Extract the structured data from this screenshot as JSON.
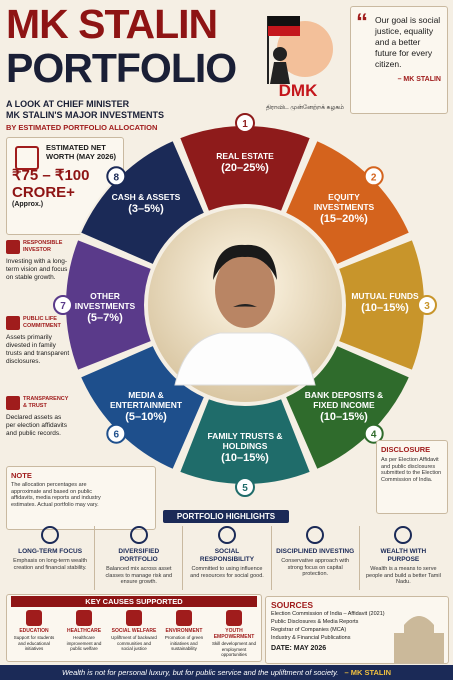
{
  "header": {
    "title_line1": "MK STALIN",
    "title_line2": "PORTFOLIO",
    "subtitle_line1": "A LOOK AT CHIEF MINISTER",
    "subtitle_line2": "MK STALIN'S MAJOR INVESTMENTS",
    "tagline": "BY ESTIMATED PORTFOLIO ALLOCATION"
  },
  "logo": {
    "name": "DMK",
    "tamil": "திராவிட முன்னேற்றக் கழகம்"
  },
  "quote": {
    "text": "Our goal is social justice, equality and a better future for every citizen.",
    "author": "– MK STALIN"
  },
  "net_worth": {
    "label": "ESTIMATED NET WORTH (MAY 2026)",
    "value": "₹75 – ₹100 CRORE+",
    "note": "(Approx.)"
  },
  "side_items": [
    {
      "title": "RESPONSIBLE INVESTOR",
      "text": "Investing with a long-term vision and focus on stable growth."
    },
    {
      "title": "PUBLIC LIFE COMMITMENT",
      "text": "Assets primarily divested in family trusts and transparent disclosures."
    },
    {
      "title": "TRANSPARENCY & TRUST",
      "text": "Declared assets as per election affidavits and public records."
    }
  ],
  "note": {
    "title": "NOTE",
    "text": "The allocation percentages are approximate and based on public affidavits, media reports and industry estimates. Actual portfolio may vary."
  },
  "segments": [
    {
      "number": "1",
      "label": "REAL ESTATE",
      "range": "(20–25%)",
      "color": "#8e1b1b"
    },
    {
      "number": "2",
      "label": "EQUITY INVESTMENTS",
      "range": "(15–20%)",
      "color": "#d4631d"
    },
    {
      "number": "3",
      "label": "MUTUAL FUNDS",
      "range": "(10–15%)",
      "color": "#c8952b"
    },
    {
      "number": "4",
      "label": "BANK DEPOSITS & FIXED INCOME",
      "range": "(10–15%)",
      "color": "#2f6b2c"
    },
    {
      "number": "5",
      "label": "FAMILY TRUSTS & HOLDINGS",
      "range": "(10–15%)",
      "color": "#1f6c6a"
    },
    {
      "number": "6",
      "label": "MEDIA & ENTERTAINMENT",
      "range": "(5–10%)",
      "color": "#1e4f8c"
    },
    {
      "number": "7",
      "label": "OTHER INVESTMENTS",
      "range": "(5–7%)",
      "color": "#5a3a8a"
    },
    {
      "number": "8",
      "label": "CASH & ASSETS",
      "range": "(3–5%)",
      "color": "#1b2a57"
    }
  ],
  "disclosure": {
    "title": "DISCLOSURE",
    "text": "As per Election Affidavit and public disclosures submitted to the Election Commission of India."
  },
  "highlights": {
    "title": "PORTFOLIO HIGHLIGHTS",
    "items": [
      {
        "title": "LONG-TERM FOCUS",
        "text": "Emphasis on long-term wealth creation and financial stability."
      },
      {
        "title": "DIVERSIFIED PORTFOLIO",
        "text": "Balanced mix across asset classes to manage risk and ensure growth."
      },
      {
        "title": "SOCIAL RESPONSIBILITY",
        "text": "Committed to using influence and resources for social good."
      },
      {
        "title": "DISCIPLINED INVESTING",
        "text": "Conservative approach with strong focus on capital protection."
      },
      {
        "title": "WEALTH WITH PURPOSE",
        "text": "Wealth is a means to serve people and build a better Tamil Nadu."
      }
    ]
  },
  "causes": {
    "title": "KEY CAUSES SUPPORTED",
    "items": [
      {
        "title": "EDUCATION",
        "text": "Support for students and educational initiatives"
      },
      {
        "title": "HEALTHCARE",
        "text": "Healthcare improvement and public welfare"
      },
      {
        "title": "SOCIAL WELFARE",
        "text": "Upliftment of backward communities and social justice"
      },
      {
        "title": "ENVIRONMENT",
        "text": "Promotion of green initiatives and sustainability"
      },
      {
        "title": "YOUTH EMPOWERMENT",
        "text": "Skill development and employment opportunities"
      }
    ]
  },
  "sources": {
    "title": "SOURCES",
    "items": [
      "Election Commission of India – Affidavit (2021)",
      "Public Disclosures & Media Reports",
      "Registrar of Companies (MCA)",
      "Industry & Financial Publications"
    ],
    "date": "DATE: MAY 2026"
  },
  "footer": {
    "quote": "Wealth is not for personal luxury, but for public service and the upliftment of society.",
    "author": "– MK STALIN"
  }
}
